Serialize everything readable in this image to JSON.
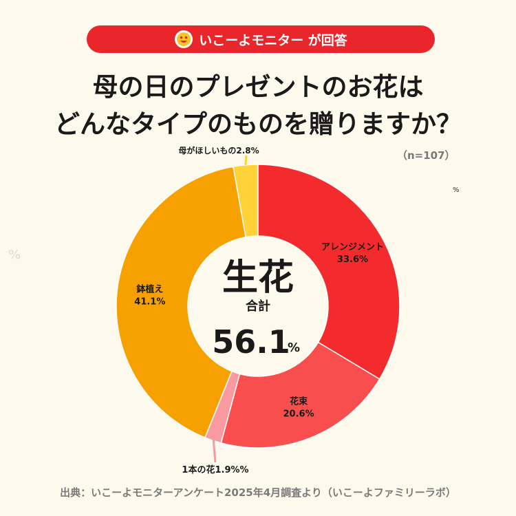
{
  "header": {
    "badge_label": "いこーよモニター が回答",
    "badge_icon": "smiley-logo-icon",
    "title_line1": "母の日のプレゼントのお花は",
    "title_line2": "どんなタイプのものを贈りますか？",
    "sample_size": "（n=107）"
  },
  "stray_marks": {
    "percent_right": "%",
    "percent_left": "%"
  },
  "center": {
    "headline": "生花",
    "sub": "合計",
    "value": "56.1",
    "unit": "%"
  },
  "chart_data": {
    "type": "pie",
    "donut": true,
    "categories": [
      "アレンジメント",
      "花束",
      "1本の花",
      "鉢植え",
      "母がほしいもの"
    ],
    "values": [
      33.6,
      20.6,
      1.9,
      41.1,
      2.8
    ],
    "value_labels": [
      "33.6%",
      "20.6%",
      "1.9%%",
      "41.1%",
      "2.8%"
    ],
    "colors": [
      "#f42b2d",
      "#f94e4e",
      "#f89aa0",
      "#f6a100",
      "#ffd23a"
    ]
  },
  "footer": {
    "source": "出典：いこーよモニターアンケート2025年4月調査より（いこーよファミリーラボ）"
  }
}
